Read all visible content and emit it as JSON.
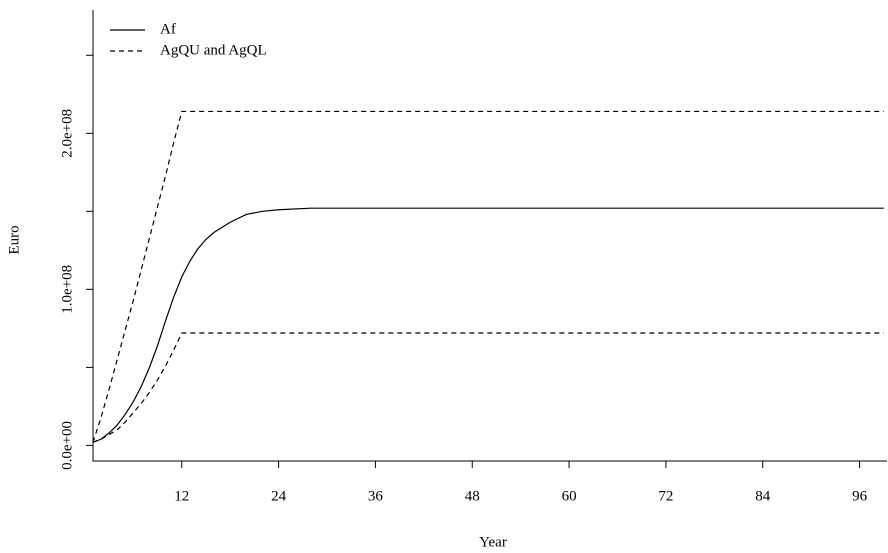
{
  "chart_data": {
    "type": "line",
    "xlabel": "Year",
    "ylabel": "Euro",
    "x": [
      1,
      2,
      3,
      4,
      5,
      6,
      7,
      8,
      9,
      10,
      11,
      12,
      13,
      14,
      15,
      16,
      18,
      20,
      22,
      24,
      28,
      36,
      48,
      60,
      72,
      84,
      99
    ],
    "series": [
      {
        "name": "Af",
        "color": "#000000",
        "style": "solid",
        "values": [
          2000000,
          4000000,
          8000000,
          13000000,
          20000000,
          28000000,
          38000000,
          50000000,
          64000000,
          80000000,
          95000000,
          108000000,
          118000000,
          126000000,
          132000000,
          136500000,
          143000000,
          148000000,
          150000000,
          151000000,
          152000000,
          152000000,
          152000000,
          152000000,
          152000000,
          152000000,
          152000000
        ]
      },
      {
        "name": "AgQU and AgQL",
        "color": "#000000",
        "style": "dashed",
        "values": [
          2000000,
          18000000,
          36000000,
          55000000,
          74000000,
          93000000,
          113000000,
          133000000,
          153000000,
          173000000,
          194000000,
          214000000,
          214000000,
          214000000,
          214000000,
          214000000,
          214000000,
          214000000,
          214000000,
          214000000,
          214000000,
          214000000,
          214000000,
          214000000,
          214000000,
          214000000,
          214000000
        ],
        "lower_values": [
          2000000,
          4000000,
          7000000,
          10000000,
          15000000,
          21000000,
          27000000,
          34000000,
          42000000,
          51000000,
          61000000,
          72000000,
          72000000,
          72000000,
          72000000,
          72000000,
          72000000,
          72000000,
          72000000,
          72000000,
          72000000,
          72000000,
          72000000,
          72000000,
          72000000,
          72000000,
          72000000
        ]
      }
    ],
    "xlim": [
      1,
      99.4
    ],
    "ylim": [
      -10000000,
      279000000
    ],
    "xticks": [
      12,
      24,
      36,
      48,
      60,
      72,
      84,
      96
    ],
    "yticks": [
      {
        "value": 0,
        "label": "0.0e+00"
      },
      {
        "value": 50000000,
        "label": null
      },
      {
        "value": 100000000,
        "label": "1.0e+08"
      },
      {
        "value": 150000000,
        "label": null
      },
      {
        "value": 200000000,
        "label": "2.0e+08"
      },
      {
        "value": 250000000,
        "label": null
      }
    ],
    "legend": "top-left"
  }
}
